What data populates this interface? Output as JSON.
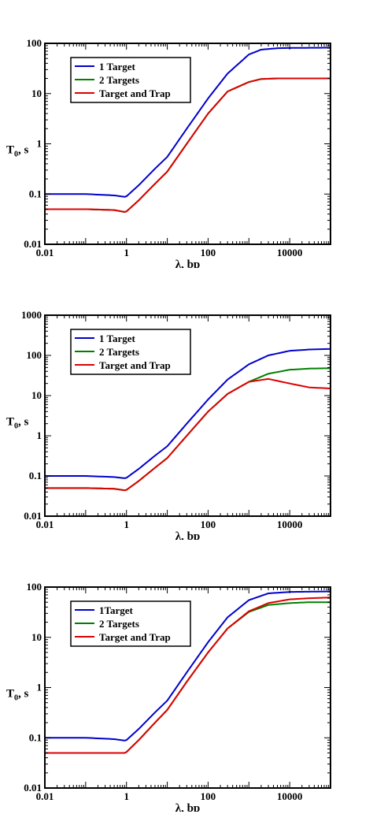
{
  "chart_data": [
    {
      "type": "line",
      "x_scale": "log",
      "y_scale": "log",
      "xlim": [
        0.01,
        100000
      ],
      "ylim": [
        0.01,
        100
      ],
      "xlabel": "λ, bp",
      "ylabel_main": "T",
      "ylabel_sub": "0",
      "ylabel_tail": ", s",
      "x_ticks": [
        {
          "value": 0.01,
          "label": "0.01"
        },
        {
          "value": 1,
          "label": "1"
        },
        {
          "value": 100,
          "label": "100"
        },
        {
          "value": 10000,
          "label": "10000"
        }
      ],
      "y_ticks": [
        {
          "value": 0.01,
          "label": "0.01"
        },
        {
          "value": 0.1,
          "label": "0.1"
        },
        {
          "value": 1,
          "label": "1"
        },
        {
          "value": 10,
          "label": "10"
        },
        {
          "value": 100,
          "label": "100"
        }
      ],
      "legend_position": "top-left",
      "series": [
        {
          "name": "1 Target",
          "color": "#0000cc",
          "x": [
            0.01,
            0.1,
            0.5,
            0.9,
            1,
            2,
            5,
            10,
            30,
            100,
            300,
            1000,
            2000,
            5000,
            10000,
            100000
          ],
          "y": [
            0.1,
            0.1,
            0.094,
            0.088,
            0.09,
            0.15,
            0.32,
            0.55,
            2.0,
            8.0,
            25,
            60,
            75,
            80,
            81,
            82
          ]
        },
        {
          "name": "2 Targets",
          "color": "#008000",
          "x": [
            0.01,
            0.1,
            0.5,
            0.9,
            1,
            2,
            5,
            10,
            30,
            100,
            300,
            1000,
            2000,
            5000,
            10000,
            100000
          ],
          "y": [
            0.05,
            0.05,
            0.048,
            0.044,
            0.045,
            0.075,
            0.16,
            0.28,
            1.0,
            4.0,
            11,
            17,
            19.5,
            20,
            20,
            20
          ]
        },
        {
          "name": "Target and Trap",
          "color": "#dd0000",
          "x": [
            0.01,
            0.1,
            0.5,
            0.9,
            1,
            2,
            5,
            10,
            30,
            100,
            300,
            1000,
            2000,
            5000,
            10000,
            100000
          ],
          "y": [
            0.05,
            0.05,
            0.048,
            0.044,
            0.045,
            0.075,
            0.16,
            0.28,
            1.0,
            4.0,
            11,
            17,
            19.5,
            20,
            20,
            20
          ]
        }
      ]
    },
    {
      "type": "line",
      "x_scale": "log",
      "y_scale": "log",
      "xlim": [
        0.01,
        100000
      ],
      "ylim": [
        0.01,
        1000
      ],
      "xlabel": "λ, bp",
      "ylabel_main": "T",
      "ylabel_sub": "0",
      "ylabel_tail": ", s",
      "x_ticks": [
        {
          "value": 0.01,
          "label": "0.01"
        },
        {
          "value": 1,
          "label": "1"
        },
        {
          "value": 100,
          "label": "100"
        },
        {
          "value": 10000,
          "label": "10000"
        }
      ],
      "y_ticks": [
        {
          "value": 0.01,
          "label": "0.01"
        },
        {
          "value": 0.1,
          "label": "0.1"
        },
        {
          "value": 1,
          "label": "1"
        },
        {
          "value": 10,
          "label": "10"
        },
        {
          "value": 100,
          "label": "100"
        },
        {
          "value": 1000,
          "label": "1000"
        }
      ],
      "legend_position": "top-left",
      "series": [
        {
          "name": "1 Target",
          "color": "#0000cc",
          "x": [
            0.01,
            0.1,
            0.5,
            0.9,
            1,
            2,
            5,
            10,
            30,
            100,
            300,
            1000,
            3000,
            10000,
            30000,
            100000
          ],
          "y": [
            0.1,
            0.1,
            0.094,
            0.088,
            0.09,
            0.15,
            0.32,
            0.55,
            2.0,
            8.0,
            25,
            60,
            100,
            130,
            140,
            145
          ]
        },
        {
          "name": "2 Targets",
          "color": "#008000",
          "x": [
            0.01,
            0.1,
            0.5,
            0.9,
            1,
            2,
            5,
            10,
            30,
            100,
            300,
            1000,
            3000,
            10000,
            30000,
            100000
          ],
          "y": [
            0.05,
            0.05,
            0.048,
            0.044,
            0.045,
            0.075,
            0.16,
            0.28,
            1.0,
            4.0,
            11,
            22,
            35,
            44,
            47,
            48
          ]
        },
        {
          "name": "Target and Trap",
          "color": "#dd0000",
          "x": [
            0.01,
            0.1,
            0.5,
            0.9,
            1,
            2,
            5,
            10,
            30,
            100,
            300,
            1000,
            3000,
            10000,
            30000,
            100000
          ],
          "y": [
            0.05,
            0.05,
            0.048,
            0.044,
            0.045,
            0.075,
            0.16,
            0.28,
            1.0,
            4.0,
            11,
            22,
            26,
            20,
            16,
            15
          ]
        }
      ]
    },
    {
      "type": "line",
      "x_scale": "log",
      "y_scale": "log",
      "xlim": [
        0.01,
        100000
      ],
      "ylim": [
        0.01,
        100
      ],
      "xlabel": "λ, bp",
      "ylabel_main": "T",
      "ylabel_sub": "0",
      "ylabel_tail": ", s",
      "x_ticks": [
        {
          "value": 0.01,
          "label": "0.01"
        },
        {
          "value": 1,
          "label": "1"
        },
        {
          "value": 100,
          "label": "100"
        },
        {
          "value": 10000,
          "label": "10000"
        }
      ],
      "y_ticks": [
        {
          "value": 0.01,
          "label": "0.01"
        },
        {
          "value": 0.1,
          "label": "0.1"
        },
        {
          "value": 1,
          "label": "1"
        },
        {
          "value": 10,
          "label": "10"
        },
        {
          "value": 100,
          "label": "100"
        }
      ],
      "legend_position": "top-left",
      "series": [
        {
          "name": "1Target",
          "color": "#0000cc",
          "x": [
            0.01,
            0.1,
            0.5,
            0.9,
            1,
            2,
            5,
            10,
            30,
            100,
            300,
            1000,
            3000,
            10000,
            30000,
            100000
          ],
          "y": [
            0.1,
            0.1,
            0.094,
            0.088,
            0.09,
            0.15,
            0.32,
            0.55,
            2.0,
            8.0,
            25,
            55,
            75,
            80,
            81,
            82
          ]
        },
        {
          "name": "2 Targets",
          "color": "#008000",
          "x": [
            0.01,
            0.1,
            0.5,
            0.9,
            1,
            2,
            5,
            10,
            30,
            100,
            300,
            1000,
            3000,
            10000,
            30000,
            100000
          ],
          "y": [
            0.05,
            0.05,
            0.05,
            0.05,
            0.052,
            0.09,
            0.2,
            0.36,
            1.3,
            5.0,
            15,
            32,
            44,
            48,
            50,
            50
          ]
        },
        {
          "name": "Target and Trap",
          "color": "#dd0000",
          "x": [
            0.01,
            0.1,
            0.5,
            0.9,
            1,
            2,
            5,
            10,
            30,
            100,
            300,
            1000,
            3000,
            10000,
            30000,
            100000
          ],
          "y": [
            0.05,
            0.05,
            0.05,
            0.05,
            0.052,
            0.09,
            0.2,
            0.36,
            1.3,
            5.0,
            15,
            33,
            48,
            57,
            60,
            62
          ]
        }
      ]
    }
  ]
}
